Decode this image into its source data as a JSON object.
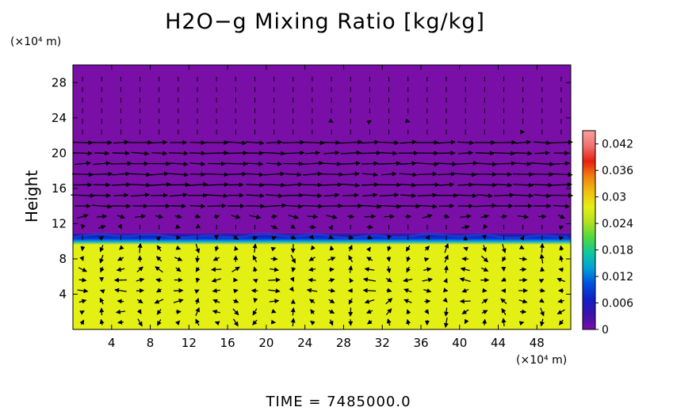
{
  "title": "H2O−g Mixing Ratio [kg/kg]",
  "ylabel": "Height",
  "y_unit": "(×10⁴ m)",
  "x_unit": "(×10⁴ m)",
  "time_label": "TIME  =  7485000.0",
  "colors": {
    "lower_layer": "#e4ef14",
    "upper_layer": "#7a0fa8",
    "interface": "#1f3fd0",
    "arrow": "#000000"
  },
  "colorbar": {
    "ticks": [
      "0.042",
      "0.036",
      "0.03",
      "0.024",
      "0.018",
      "0.012",
      "0.006",
      "0"
    ],
    "range": [
      0,
      0.045
    ],
    "stops": [
      "#7a0fa8",
      "#3a12a8",
      "#1020c8",
      "#0050e0",
      "#00a0d8",
      "#10c8a0",
      "#50d840",
      "#b0e020",
      "#e4ef14",
      "#f0c010",
      "#f08010",
      "#e82010",
      "#f07070",
      "#f8a0a0"
    ]
  },
  "chart_data": {
    "type": "heatmap",
    "title": "H2O−g Mixing Ratio [kg/kg]",
    "ylabel": "Height",
    "xlabel": "",
    "x_ticks": [
      "4",
      "8",
      "12",
      "16",
      "20",
      "24",
      "28",
      "32",
      "36",
      "40",
      "44",
      "48"
    ],
    "y_ticks": [
      "4",
      "8",
      "12",
      "16",
      "20",
      "24",
      "28"
    ],
    "xlim": [
      0,
      51.5
    ],
    "ylim": [
      0,
      30
    ],
    "layers": [
      {
        "y_from": 0,
        "y_to": 9.6,
        "value": 0.03
      },
      {
        "y_from": 9.6,
        "y_to": 11,
        "value": 0.006
      },
      {
        "y_from": 11,
        "y_to": 30,
        "value": 0
      }
    ],
    "wind_vectors": true
  }
}
